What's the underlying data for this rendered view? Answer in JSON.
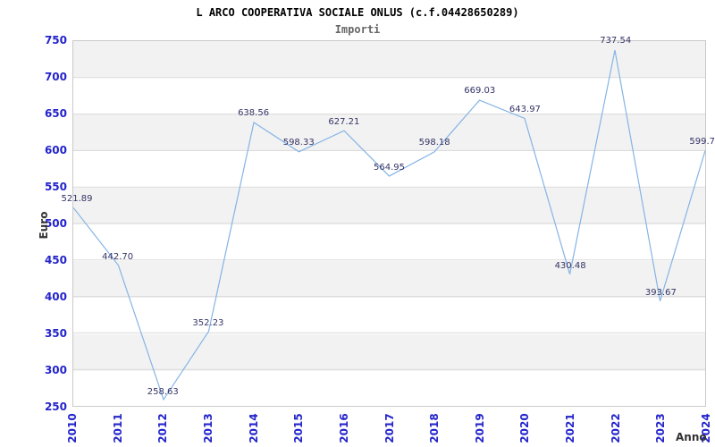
{
  "header": {
    "title": "L ARCO COOPERATIVA SOCIALE ONLUS (c.f.04428650289)",
    "subtitle": "Importi"
  },
  "chart_data": {
    "type": "line",
    "title": "L ARCO COOPERATIVA SOCIALE ONLUS (c.f.04428650289)",
    "subtitle": "Importi",
    "xlabel": "Anno",
    "ylabel": "Euro",
    "categories": [
      "2010",
      "2011",
      "2012",
      "2013",
      "2014",
      "2015",
      "2016",
      "2017",
      "2018",
      "2019",
      "2020",
      "2021",
      "2022",
      "2023",
      "2024"
    ],
    "series": [
      {
        "name": "Importi",
        "values": [
          521.89,
          442.7,
          258.63,
          352.23,
          638.56,
          598.33,
          627.21,
          564.95,
          598.18,
          669.03,
          643.97,
          430.48,
          737.54,
          393.67,
          599.7
        ]
      }
    ],
    "point_labels": [
      "521.89",
      "442.70",
      "258.63",
      "352.23",
      "638.56",
      "598.33",
      "627.21",
      "564.95",
      "598.18",
      "669.03",
      "643.97",
      "430.48",
      "737.54",
      "393.67",
      "599.7"
    ],
    "ylim": [
      250,
      750
    ],
    "y_ticks": [
      750,
      700,
      650,
      600,
      550,
      500,
      450,
      400,
      350,
      300,
      250
    ],
    "grid": "horizontal gridlines with alternating shaded bands every 50 units",
    "legend": "none",
    "colors": {
      "line": "#85b4e5",
      "tick_labels": "#2424cc",
      "point_labels": "#333366",
      "band": "#f2f2f2",
      "grid_line": "#d9d9d9",
      "plot_border": "#c9c9c9",
      "title": "#000000",
      "subtitle": "#666666",
      "axis_titles": "#333333"
    }
  }
}
